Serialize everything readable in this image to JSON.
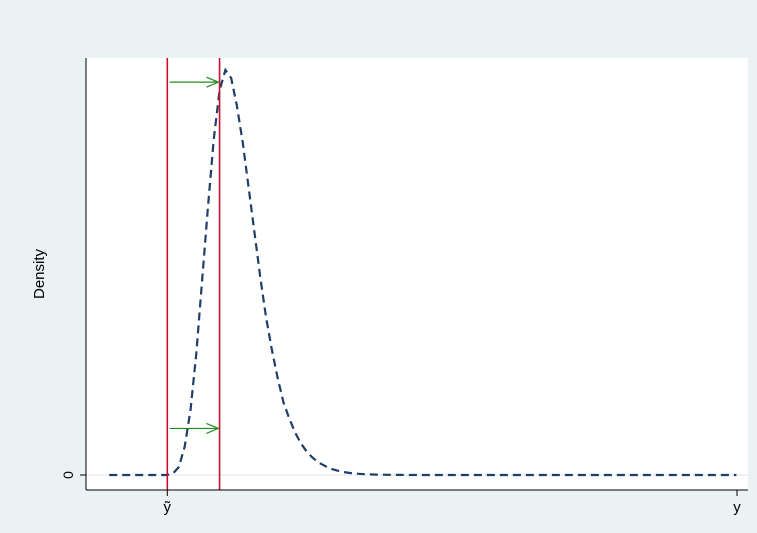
{
  "chart_data": {
    "type": "line",
    "ylabel": "Density",
    "xlabel": "y",
    "x_tick_labels": [
      "ỹ"
    ],
    "y_tick_labels": [
      "0"
    ],
    "xlim": [
      -0.7,
      5.0
    ],
    "ylim": [
      0,
      1.04
    ],
    "grid": false,
    "series": [
      {
        "line_style": "dashed",
        "color": "#1f3f66",
        "x": [
          -0.5,
          -0.4,
          -0.3,
          -0.2,
          -0.1,
          0.0,
          0.05,
          0.1,
          0.15,
          0.2,
          0.25,
          0.3,
          0.35,
          0.4,
          0.45,
          0.5,
          0.55,
          0.6,
          0.65,
          0.7,
          0.75,
          0.8,
          0.85,
          0.9,
          0.95,
          1.0,
          1.05,
          1.1,
          1.15,
          1.2,
          1.25,
          1.3,
          1.4,
          1.5,
          1.6,
          1.7,
          1.8,
          1.9,
          2.0,
          2.2,
          2.4,
          2.6,
          2.8,
          3.0,
          3.5,
          4.0,
          4.5,
          4.9
        ],
        "y": [
          0,
          0,
          0,
          0,
          0,
          0,
          0.004,
          0.02,
          0.07,
          0.16,
          0.3,
          0.48,
          0.66,
          0.83,
          0.95,
          1.0,
          0.98,
          0.91,
          0.82,
          0.71,
          0.6,
          0.49,
          0.39,
          0.31,
          0.24,
          0.18,
          0.14,
          0.105,
          0.078,
          0.058,
          0.043,
          0.031,
          0.016,
          0.008,
          0.004,
          0.002,
          0.001,
          0.0004,
          0.0002,
          0,
          0,
          0,
          0,
          0,
          0,
          0,
          0,
          0
        ]
      }
    ],
    "vertical_lines": [
      {
        "x": 0.0,
        "color": "#c8102e"
      },
      {
        "x": 0.45,
        "color": "#c8102e"
      }
    ],
    "arrows": [
      {
        "x_from": 0.02,
        "x_to": 0.44,
        "y": 0.97,
        "color": "#228b22"
      },
      {
        "x_from": 0.02,
        "x_to": 0.44,
        "y": 0.115,
        "color": "#228b22"
      }
    ]
  }
}
